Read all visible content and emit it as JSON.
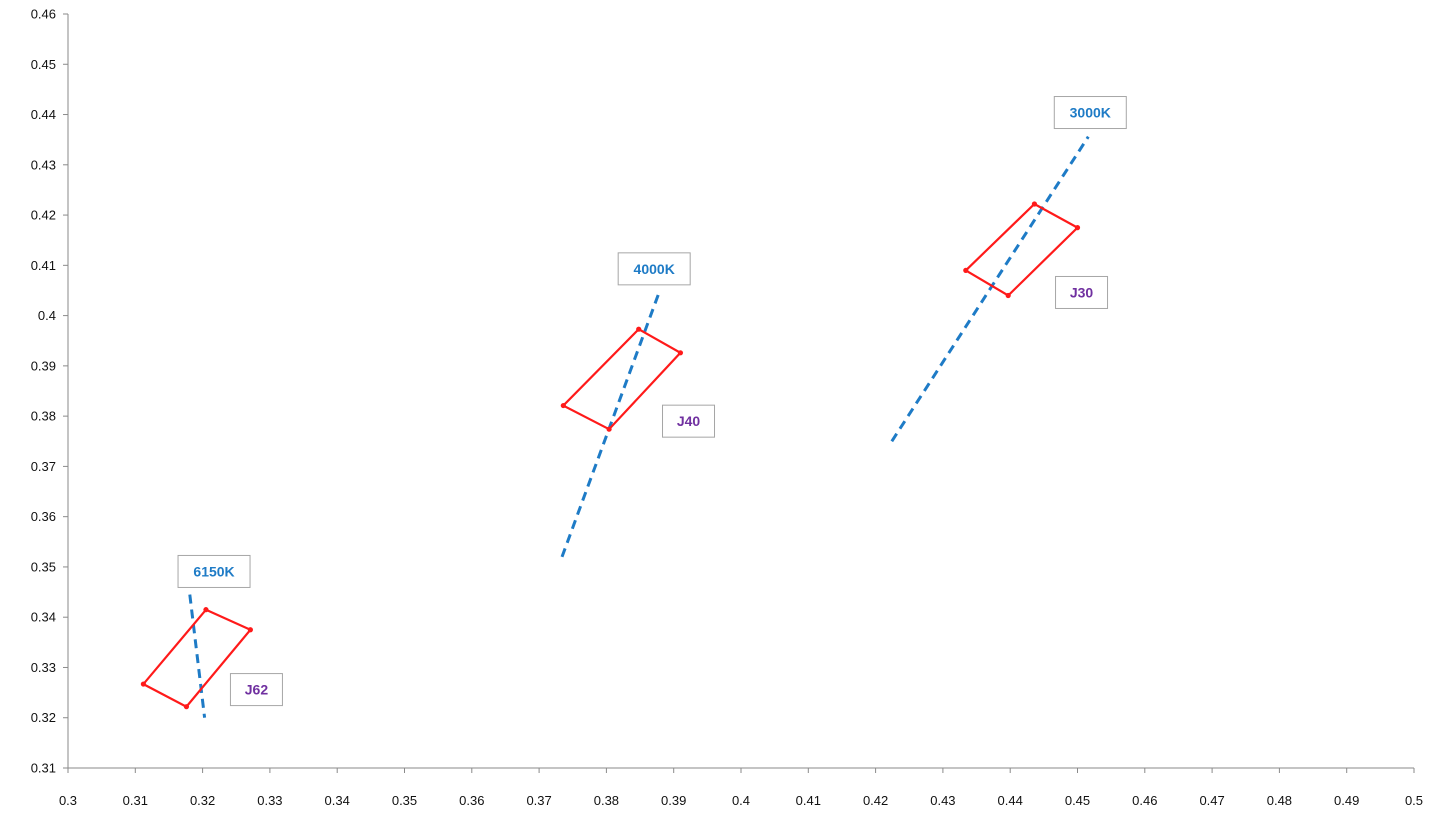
{
  "chart_data": {
    "type": "scatter",
    "title": "",
    "xlabel": "",
    "ylabel": "",
    "xlim": [
      0.3,
      0.5
    ],
    "ylim": [
      0.31,
      0.46
    ],
    "x_ticks": [
      "0.3",
      "0.31",
      "0.32",
      "0.33",
      "0.34",
      "0.35",
      "0.36",
      "0.37",
      "0.38",
      "0.39",
      "0.4",
      "0.41",
      "0.42",
      "0.43",
      "0.44",
      "0.45",
      "0.46",
      "0.47",
      "0.48",
      "0.49",
      "0.5"
    ],
    "y_ticks": [
      "0.31",
      "0.32",
      "0.33",
      "0.34",
      "0.35",
      "0.36",
      "0.37",
      "0.38",
      "0.39",
      "0.4",
      "0.41",
      "0.42",
      "0.43",
      "0.44",
      "0.45",
      "0.46"
    ],
    "grid": false,
    "legend": "none",
    "colors": {
      "cct_line": "#1e7bc6",
      "bin": "#ff1a1a",
      "cct_label_text": "#1e7bc6",
      "bin_label_text": "#7030a0",
      "axis": "#8a8a8a"
    },
    "cct_lines": [
      {
        "label": "6150K",
        "points": [
          [
            0.3181,
            0.3445
          ],
          [
            0.3203,
            0.32
          ]
        ],
        "label_at": [
          0.3217,
          0.3491
        ]
      },
      {
        "label": "4000K",
        "points": [
          [
            0.3734,
            0.352
          ],
          [
            0.3878,
            0.4045
          ]
        ],
        "label_at": [
          0.3871,
          0.4093
        ]
      },
      {
        "label": "3000K",
        "points": [
          [
            0.4224,
            0.375
          ],
          [
            0.4516,
            0.4356
          ]
        ],
        "label_at": [
          0.4519,
          0.4404
        ]
      }
    ],
    "bins": [
      {
        "label": "J62",
        "vertices": [
          [
            0.3205,
            0.3415
          ],
          [
            0.3271,
            0.3375
          ],
          [
            0.3176,
            0.3222
          ],
          [
            0.3112,
            0.3267
          ]
        ],
        "label_at": [
          0.328,
          0.3256
        ]
      },
      {
        "label": "J40",
        "vertices": [
          [
            0.3848,
            0.3973
          ],
          [
            0.391,
            0.3926
          ],
          [
            0.3804,
            0.3774
          ],
          [
            0.3736,
            0.3821
          ]
        ],
        "label_at": [
          0.3922,
          0.379
        ]
      },
      {
        "label": "J30",
        "vertices": [
          [
            0.4436,
            0.4222
          ],
          [
            0.45,
            0.4175
          ],
          [
            0.4397,
            0.404
          ],
          [
            0.4334,
            0.409
          ]
        ],
        "label_at": [
          0.4506,
          0.4046
        ]
      }
    ]
  }
}
